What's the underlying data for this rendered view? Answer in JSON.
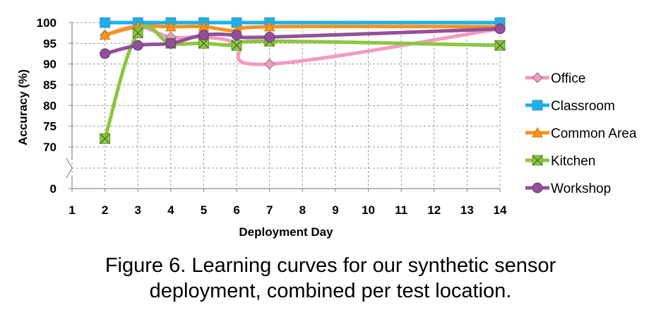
{
  "chart_data": {
    "type": "line",
    "x": [
      1,
      2,
      3,
      4,
      5,
      6,
      7,
      8,
      9,
      10,
      11,
      12,
      13,
      14
    ],
    "xlabel": "Deployment Day",
    "ylabel": "Accuracy (%)",
    "ylim": [
      70,
      100
    ],
    "axis_break": true,
    "yticks": [
      "0",
      "70",
      "75",
      "80",
      "85",
      "90",
      "95",
      "100"
    ],
    "grid": true,
    "legend_position": "right",
    "series": [
      {
        "name": "Office",
        "color": "#f49ac1",
        "marker": "diamond",
        "points": [
          [
            2,
            97
          ],
          [
            3,
            99
          ],
          [
            4,
            96.5
          ],
          [
            5,
            96.5
          ],
          [
            6,
            95
          ],
          [
            7,
            90
          ],
          [
            14,
            98.5
          ]
        ]
      },
      {
        "name": "Classroom",
        "color": "#1ab0ec",
        "marker": "square",
        "points": [
          [
            2,
            100
          ],
          [
            3,
            100
          ],
          [
            4,
            100
          ],
          [
            5,
            100
          ],
          [
            6,
            100
          ],
          [
            7,
            100
          ],
          [
            14,
            100
          ]
        ]
      },
      {
        "name": "Common Area",
        "color": "#f7941d",
        "marker": "triangle",
        "points": [
          [
            2,
            97
          ],
          [
            3,
            99
          ],
          [
            4,
            99
          ],
          [
            5,
            99
          ],
          [
            6,
            98
          ],
          [
            7,
            99
          ],
          [
            14,
            99
          ]
        ]
      },
      {
        "name": "Kitchen",
        "color": "#8cc63f",
        "marker": "x-square",
        "points": [
          [
            2,
            72
          ],
          [
            3,
            97.5
          ],
          [
            4,
            95
          ],
          [
            5,
            95
          ],
          [
            6,
            94.5
          ],
          [
            7,
            95.5
          ],
          [
            14,
            94.5
          ]
        ]
      },
      {
        "name": "Workshop",
        "color": "#92509b",
        "marker": "circle",
        "points": [
          [
            2,
            92.5
          ],
          [
            3,
            94.5
          ],
          [
            4,
            95
          ],
          [
            5,
            97
          ],
          [
            6,
            97
          ],
          [
            7,
            96.5
          ],
          [
            14,
            98.5
          ]
        ]
      }
    ]
  },
  "caption": {
    "line1": "Figure 6. Learning curves for our synthetic sensor",
    "line2": "deployment, combined per test location."
  }
}
